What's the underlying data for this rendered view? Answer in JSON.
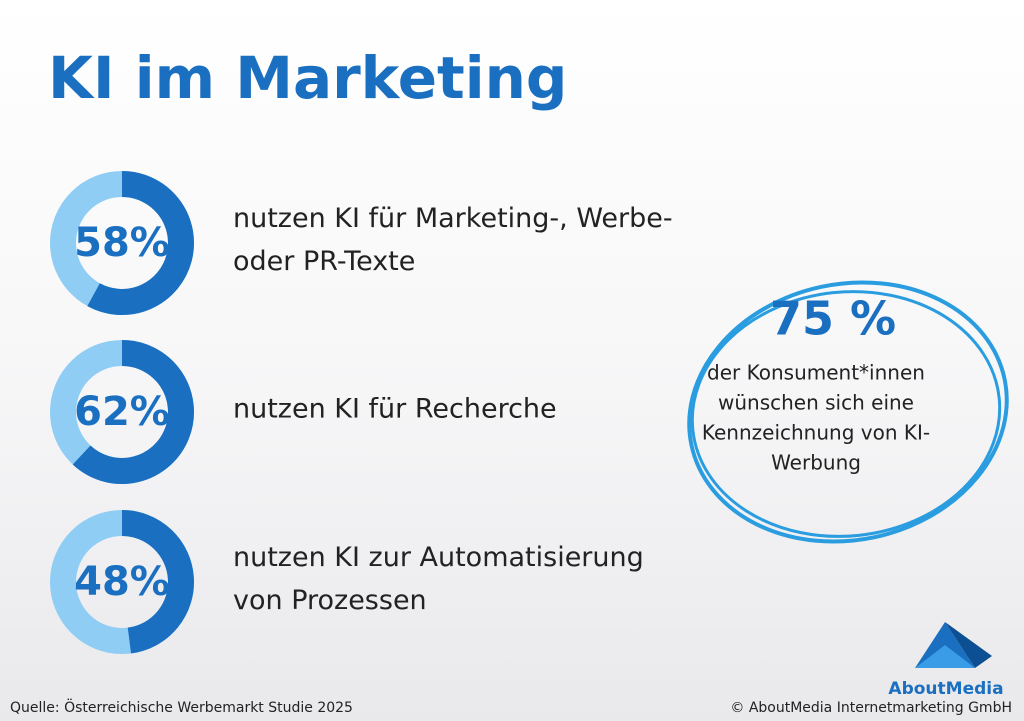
{
  "header": {
    "title": "KI im Marketing"
  },
  "items": [
    {
      "value": 58,
      "value_label": "58%",
      "lines": [
        "nutzen KI für Marketing-, Werbe-",
        "oder PR-Texte"
      ]
    },
    {
      "value": 62,
      "value_label": "62%",
      "lines": [
        "nutzen KI für Recherche"
      ]
    },
    {
      "value": 48,
      "value_label": "48%",
      "lines": [
        "nutzen KI zur Automatisierung",
        "von Prozessen"
      ]
    }
  ],
  "highlight": {
    "value_label": "75 %",
    "lines": [
      "der Konsument*innen",
      "wünschen sich eine",
      "Kennzeichnung von KI-",
      "Werbung"
    ]
  },
  "footer": {
    "source": "Quelle: Österreichische Werbemarkt Studie 2025",
    "copyright": "© AboutMedia Internetmarketing GmbH",
    "logo": "AboutMedia"
  }
}
